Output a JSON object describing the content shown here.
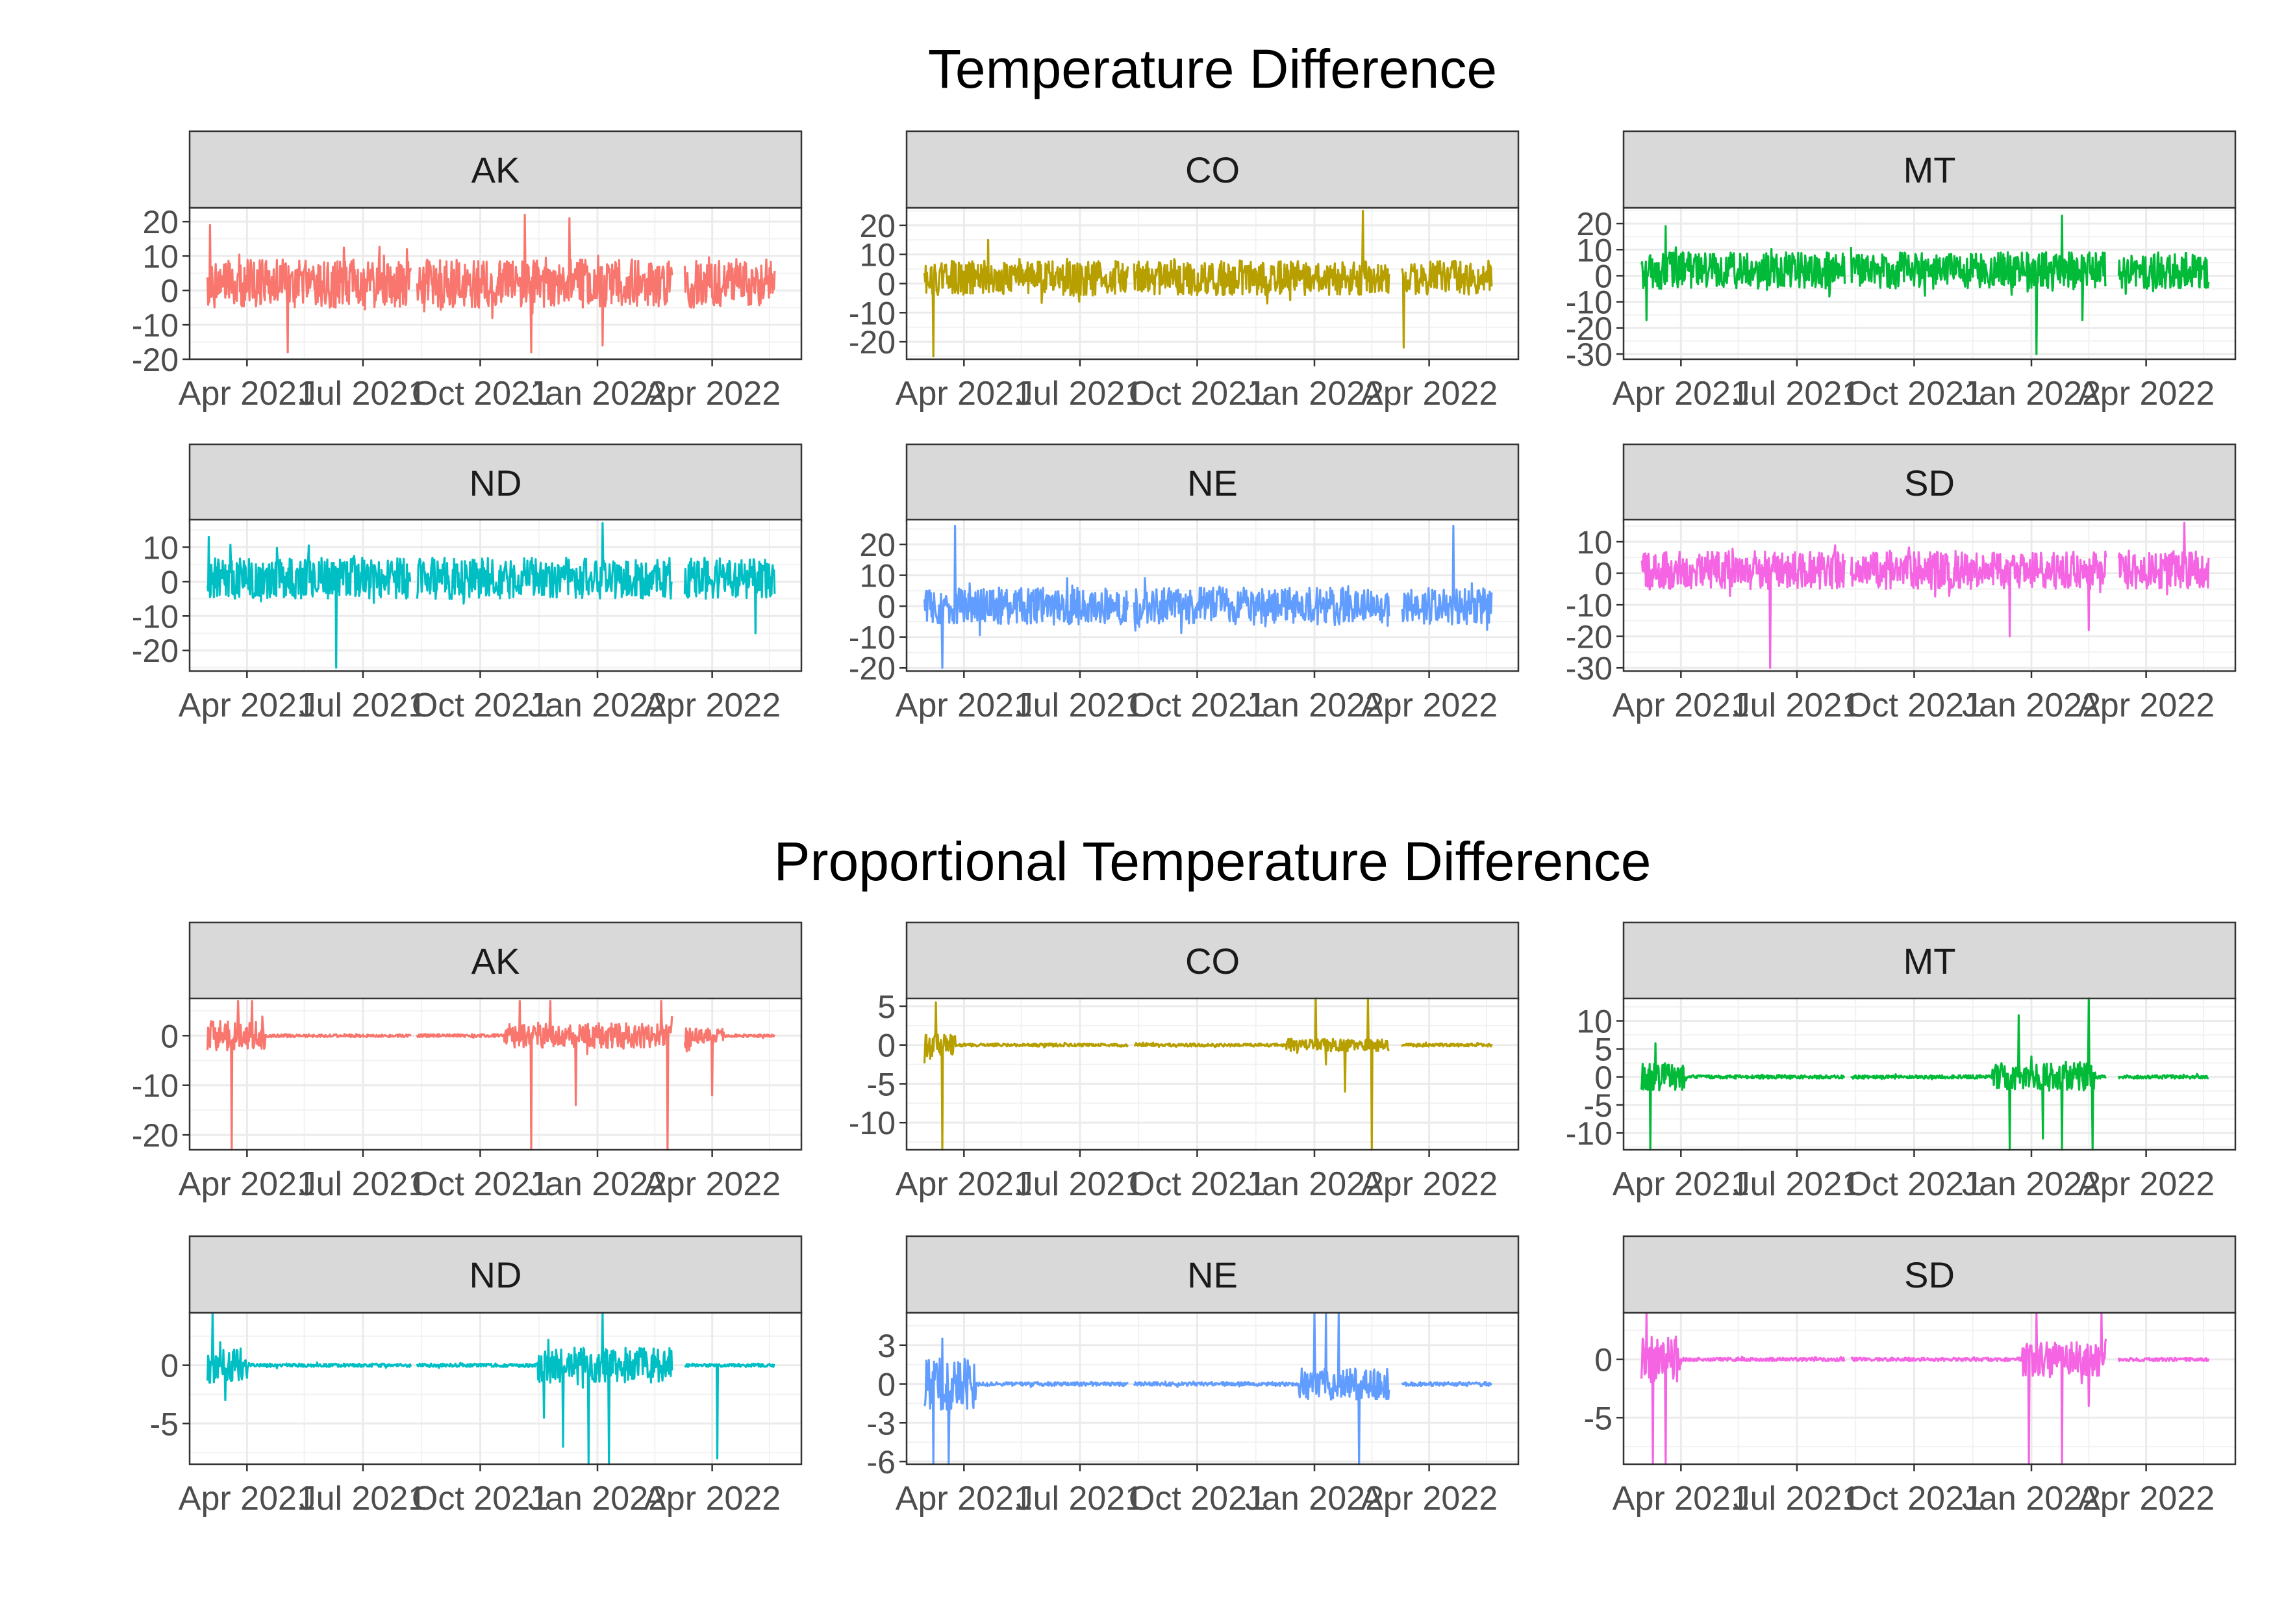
{
  "chart_data": [
    {
      "type": "line",
      "title": "Temperature Difference",
      "xlabel": "",
      "ylabel": "",
      "x_ticks": [
        "Apr 2021",
        "Jul 2021",
        "Oct 2021",
        "Jan 2022",
        "Apr 2022"
      ],
      "x_range": [
        "2021-02-15",
        "2022-06-10"
      ],
      "gaps": [
        [
          "2021-08-08",
          "2021-08-12"
        ],
        [
          "2022-03-01",
          "2022-03-10"
        ]
      ],
      "grid": true,
      "legend": "none",
      "panels": [
        {
          "label": "AK",
          "color": "#F8766D",
          "ylim": [
            -20,
            24
          ],
          "y_ticks": [
            -20,
            -10,
            0,
            10,
            20
          ],
          "series": {
            "x_start": "2021-03-01",
            "x_end": "2022-05-20",
            "base": 2,
            "amplitude": 7,
            "spikes": [
              [
                "2021-03-03",
                19
              ],
              [
                "2021-05-03",
                -18
              ],
              [
                "2021-11-10",
                -18
              ],
              [
                "2021-11-05",
                22
              ],
              [
                "2021-12-10",
                21
              ],
              [
                "2022-01-05",
                -16
              ]
            ]
          }
        },
        {
          "label": "CO",
          "color": "#B79F00",
          "ylim": [
            -26,
            26
          ],
          "y_ticks": [
            -20,
            -10,
            0,
            10,
            20
          ],
          "series": {
            "x_start": "2021-03-01",
            "x_end": "2022-05-20",
            "base": 2,
            "amplitude": 6,
            "spikes": [
              [
                "2021-03-08",
                -25
              ],
              [
                "2022-02-08",
                25
              ],
              [
                "2022-03-12",
                -22
              ],
              [
                "2021-04-20",
                15
              ]
            ]
          }
        },
        {
          "label": "MT",
          "color": "#00BA38",
          "ylim": [
            -32,
            26
          ],
          "y_ticks": [
            -30,
            -20,
            -10,
            0,
            10,
            20
          ],
          "series": {
            "x_start": "2021-03-01",
            "x_end": "2022-05-20",
            "base": 2,
            "amplitude": 7,
            "spikes": [
              [
                "2021-03-20",
                19
              ],
              [
                "2022-01-05",
                -30
              ],
              [
                "2022-01-25",
                23
              ],
              [
                "2021-03-05",
                -17
              ],
              [
                "2022-02-10",
                -17
              ]
            ]
          }
        },
        {
          "label": "ND",
          "color": "#00BFC4",
          "ylim": [
            -26,
            18
          ],
          "y_ticks": [
            -20,
            -10,
            0,
            10
          ],
          "series": {
            "x_start": "2021-03-01",
            "x_end": "2022-05-20",
            "base": 1,
            "amplitude": 6,
            "spikes": [
              [
                "2021-06-10",
                -25
              ],
              [
                "2022-01-05",
                17
              ],
              [
                "2021-03-02",
                13
              ],
              [
                "2022-05-05",
                -15
              ]
            ]
          }
        },
        {
          "label": "NE",
          "color": "#619CFF",
          "ylim": [
            -21,
            28
          ],
          "y_ticks": [
            -20,
            -10,
            0,
            10,
            20
          ],
          "series": {
            "x_start": "2021-03-01",
            "x_end": "2022-05-20",
            "base": 0,
            "amplitude": 6,
            "spikes": [
              [
                "2021-03-25",
                26
              ],
              [
                "2022-04-20",
                26
              ],
              [
                "2022-03-05",
                -20
              ],
              [
                "2021-03-15",
                -20
              ]
            ]
          }
        },
        {
          "label": "SD",
          "color": "#F564E3",
          "ylim": [
            -31,
            17
          ],
          "y_ticks": [
            -30,
            -20,
            -10,
            0,
            10
          ],
          "series": {
            "x_start": "2021-03-01",
            "x_end": "2022-05-20",
            "base": 1,
            "amplitude": 6,
            "spikes": [
              [
                "2021-06-10",
                -30
              ],
              [
                "2022-05-01",
                16
              ],
              [
                "2021-12-15",
                -20
              ],
              [
                "2022-02-15",
                -18
              ]
            ]
          }
        }
      ]
    },
    {
      "type": "line",
      "title": "Proportional Temperature Difference",
      "xlabel": "",
      "ylabel": "",
      "x_ticks": [
        "Apr 2021",
        "Jul 2021",
        "Oct 2021",
        "Jan 2022",
        "Apr 2022"
      ],
      "x_range": [
        "2021-02-15",
        "2022-06-10"
      ],
      "gaps": [
        [
          "2021-08-08",
          "2021-08-12"
        ],
        [
          "2022-03-01",
          "2022-03-10"
        ]
      ],
      "grid": true,
      "legend": "none",
      "panels": [
        {
          "label": "AK",
          "color": "#F8766D",
          "ylim": [
            -23,
            7.5
          ],
          "y_ticks": [
            -20,
            -10,
            0
          ],
          "series": {
            "x_start": "2021-03-01",
            "x_end": "2022-05-20",
            "base": 0,
            "amplitude": 0.3,
            "bursts": [
              [
                "2021-03-01",
                "2021-04-15",
                3
              ],
              [
                "2021-10-20",
                "2022-03-15",
                2.5
              ],
              [
                "2022-03-10",
                "2022-04-10",
                1.5
              ]
            ],
            "spikes": [
              [
                "2021-03-20",
                -23
              ],
              [
                "2021-03-25",
                7
              ],
              [
                "2021-04-05",
                7
              ],
              [
                "2021-11-10",
                -23
              ],
              [
                "2021-11-01",
                7
              ],
              [
                "2021-11-25",
                7
              ],
              [
                "2022-02-25",
                -23
              ],
              [
                "2022-02-20",
                7
              ],
              [
                "2021-12-15",
                -14
              ],
              [
                "2022-04-01",
                -12
              ]
            ]
          }
        },
        {
          "label": "CO",
          "color": "#B79F00",
          "ylim": [
            -13.5,
            6
          ],
          "y_ticks": [
            -10,
            -5,
            0,
            5
          ],
          "series": {
            "x_start": "2021-03-01",
            "x_end": "2022-05-20",
            "base": 0,
            "amplitude": 0.2,
            "bursts": [
              [
                "2021-03-01",
                "2021-03-25",
                1.5
              ],
              [
                "2021-12-10",
                "2022-03-01",
                0.8
              ]
            ],
            "spikes": [
              [
                "2021-03-10",
                5.5
              ],
              [
                "2021-03-15",
                -13.5
              ],
              [
                "2022-01-02",
                6
              ],
              [
                "2022-01-10",
                -2.5
              ],
              [
                "2022-02-12",
                6
              ],
              [
                "2022-02-15",
                -13.5
              ],
              [
                "2022-01-25",
                -6
              ],
              [
                "2022-03-05",
                3
              ]
            ]
          }
        },
        {
          "label": "MT",
          "color": "#00BA38",
          "ylim": [
            -13,
            14
          ],
          "y_ticks": [
            -10,
            -5,
            0,
            5,
            10
          ],
          "series": {
            "x_start": "2021-03-01",
            "x_end": "2022-05-20",
            "base": 0,
            "amplitude": 0.3,
            "bursts": [
              [
                "2021-03-01",
                "2021-04-05",
                2.5
              ],
              [
                "2021-12-01",
                "2022-02-20",
                2.5
              ]
            ],
            "spikes": [
              [
                "2021-03-08",
                -13
              ],
              [
                "2021-03-12",
                6
              ],
              [
                "2021-12-15",
                -13
              ],
              [
                "2021-12-22",
                11
              ],
              [
                "2022-01-10",
                -11
              ],
              [
                "2022-01-25",
                -13
              ],
              [
                "2022-02-15",
                14
              ],
              [
                "2022-02-18",
                -13
              ]
            ]
          }
        },
        {
          "label": "ND",
          "color": "#00BFC4",
          "ylim": [
            -8.5,
            4.5
          ],
          "y_ticks": [
            -5,
            0
          ],
          "series": {
            "x_start": "2021-03-01",
            "x_end": "2022-05-20",
            "base": 0,
            "amplitude": 0.15,
            "bursts": [
              [
                "2021-03-01",
                "2021-04-01",
                1.5
              ],
              [
                "2021-11-15",
                "2022-03-01",
                1.5
              ],
              [
                "2022-02-01",
                "2022-03-01",
                1.2
              ]
            ],
            "spikes": [
              [
                "2021-03-05",
                4.5
              ],
              [
                "2021-03-15",
                -3
              ],
              [
                "2021-11-20",
                -4.5
              ],
              [
                "2021-12-25",
                -8.5
              ],
              [
                "2022-01-05",
                4.5
              ],
              [
                "2022-01-10",
                -8.5
              ],
              [
                "2021-12-05",
                -7
              ],
              [
                "2022-04-05",
                -8
              ]
            ]
          }
        },
        {
          "label": "NE",
          "color": "#619CFF",
          "ylim": [
            -6.2,
            5.5
          ],
          "y_ticks": [
            -6,
            -3,
            0,
            3
          ],
          "series": {
            "x_start": "2021-03-01",
            "x_end": "2022-05-20",
            "base": 0,
            "amplitude": 0.15,
            "bursts": [
              [
                "2021-03-01",
                "2021-04-10",
                2
              ],
              [
                "2021-12-20",
                "2022-03-10",
                1.2
              ]
            ],
            "spikes": [
              [
                "2021-03-08",
                -6.2
              ],
              [
                "2021-03-15",
                3.5
              ],
              [
                "2021-03-20",
                -6.2
              ],
              [
                "2022-01-01",
                5.5
              ],
              [
                "2022-01-10",
                5.5
              ],
              [
                "2022-01-20",
                5.5
              ],
              [
                "2022-02-05",
                -6.2
              ],
              [
                "2022-03-08",
                2.5
              ]
            ]
          }
        },
        {
          "label": "SD",
          "color": "#F564E3",
          "ylim": [
            -9,
            4
          ],
          "y_ticks": [
            -5,
            0
          ],
          "series": {
            "x_start": "2021-03-01",
            "x_end": "2022-05-20",
            "base": 0,
            "amplitude": 0.15,
            "bursts": [
              [
                "2021-03-01",
                "2021-04-01",
                2
              ],
              [
                "2021-12-25",
                "2022-03-01",
                1.5
              ]
            ],
            "spikes": [
              [
                "2021-03-10",
                -9
              ],
              [
                "2021-03-20",
                -9
              ],
              [
                "2021-03-05",
                4
              ],
              [
                "2021-12-30",
                -9
              ],
              [
                "2022-01-05",
                4
              ],
              [
                "2022-01-25",
                -9
              ],
              [
                "2022-02-15",
                -4
              ],
              [
                "2022-02-25",
                4
              ],
              [
                "2022-03-01",
                4
              ]
            ]
          }
        }
      ]
    }
  ]
}
